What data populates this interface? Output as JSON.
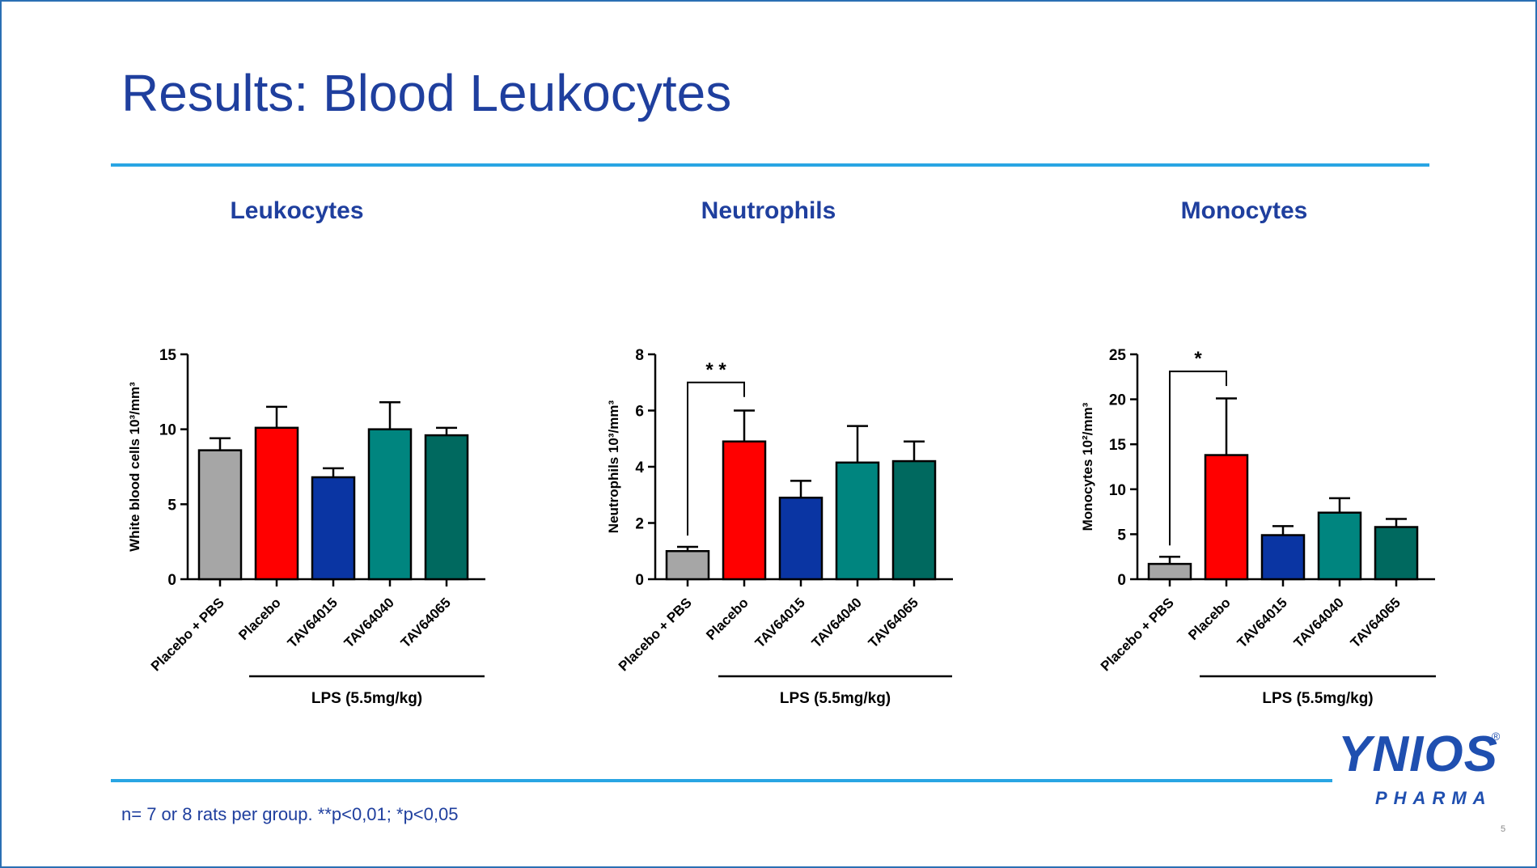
{
  "slide": {
    "title": "Results: Blood Leukocytes",
    "footnote": "n= 7 or 8 rats per group. **p<0,01; *p<0,05",
    "page_number": "5",
    "accent_color": "#29a5e3",
    "title_color": "#1f3f9e"
  },
  "logo": {
    "name": "YNIOS",
    "registered": "®",
    "sub": "PHARMA"
  },
  "chart_data": [
    {
      "type": "bar",
      "title": "Leukocytes",
      "ylabel": "White blood cells 10³/mm³",
      "ylim": [
        0,
        15
      ],
      "yticks": [
        0,
        5,
        10,
        15
      ],
      "categories": [
        "Placebo + PBS",
        "Placebo",
        "TAV64015",
        "TAV64040",
        "TAV64065"
      ],
      "values": [
        8.6,
        10.1,
        6.8,
        10.0,
        9.6
      ],
      "errors": [
        0.8,
        1.4,
        0.6,
        1.8,
        0.5
      ],
      "colors": [
        "#a6a6a6",
        "#ff0000",
        "#0a35a3",
        "#00857f",
        "#00695f"
      ],
      "group_label": "LPS (5.5mg/kg)",
      "group_range": [
        1,
        4
      ],
      "significance": []
    },
    {
      "type": "bar",
      "title": "Neutrophils",
      "ylabel": "Neutrophils 10³/mm³",
      "ylim": [
        0,
        8
      ],
      "yticks": [
        0,
        2,
        4,
        6,
        8
      ],
      "categories": [
        "Placebo + PBS",
        "Placebo",
        "TAV64015",
        "TAV64040",
        "TAV64065"
      ],
      "values": [
        1.0,
        4.9,
        2.9,
        4.15,
        4.2
      ],
      "errors": [
        0.15,
        1.1,
        0.6,
        1.3,
        0.7
      ],
      "colors": [
        "#a6a6a6",
        "#ff0000",
        "#0a35a3",
        "#00857f",
        "#00695f"
      ],
      "group_label": "LPS (5.5mg/kg)",
      "group_range": [
        1,
        4
      ],
      "significance": [
        {
          "from": 0,
          "to": 1,
          "label": "* *",
          "level": 7.0
        }
      ]
    },
    {
      "type": "bar",
      "title": "Monocytes",
      "ylabel": "Monocytes 10²/mm³",
      "ylim": [
        0,
        25
      ],
      "yticks": [
        0,
        5,
        10,
        15,
        20,
        25
      ],
      "categories": [
        "Placebo + PBS",
        "Placebo",
        "TAV64015",
        "TAV64040",
        "TAV64065"
      ],
      "values": [
        1.7,
        13.8,
        4.9,
        7.4,
        5.8
      ],
      "errors": [
        0.8,
        6.3,
        1.0,
        1.6,
        0.9
      ],
      "colors": [
        "#a6a6a6",
        "#ff0000",
        "#0a35a3",
        "#00857f",
        "#00695f"
      ],
      "group_label": "LPS (5.5mg/kg)",
      "group_range": [
        1,
        4
      ],
      "significance": [
        {
          "from": 0,
          "to": 1,
          "label": "*",
          "level": 23.1
        }
      ]
    }
  ]
}
